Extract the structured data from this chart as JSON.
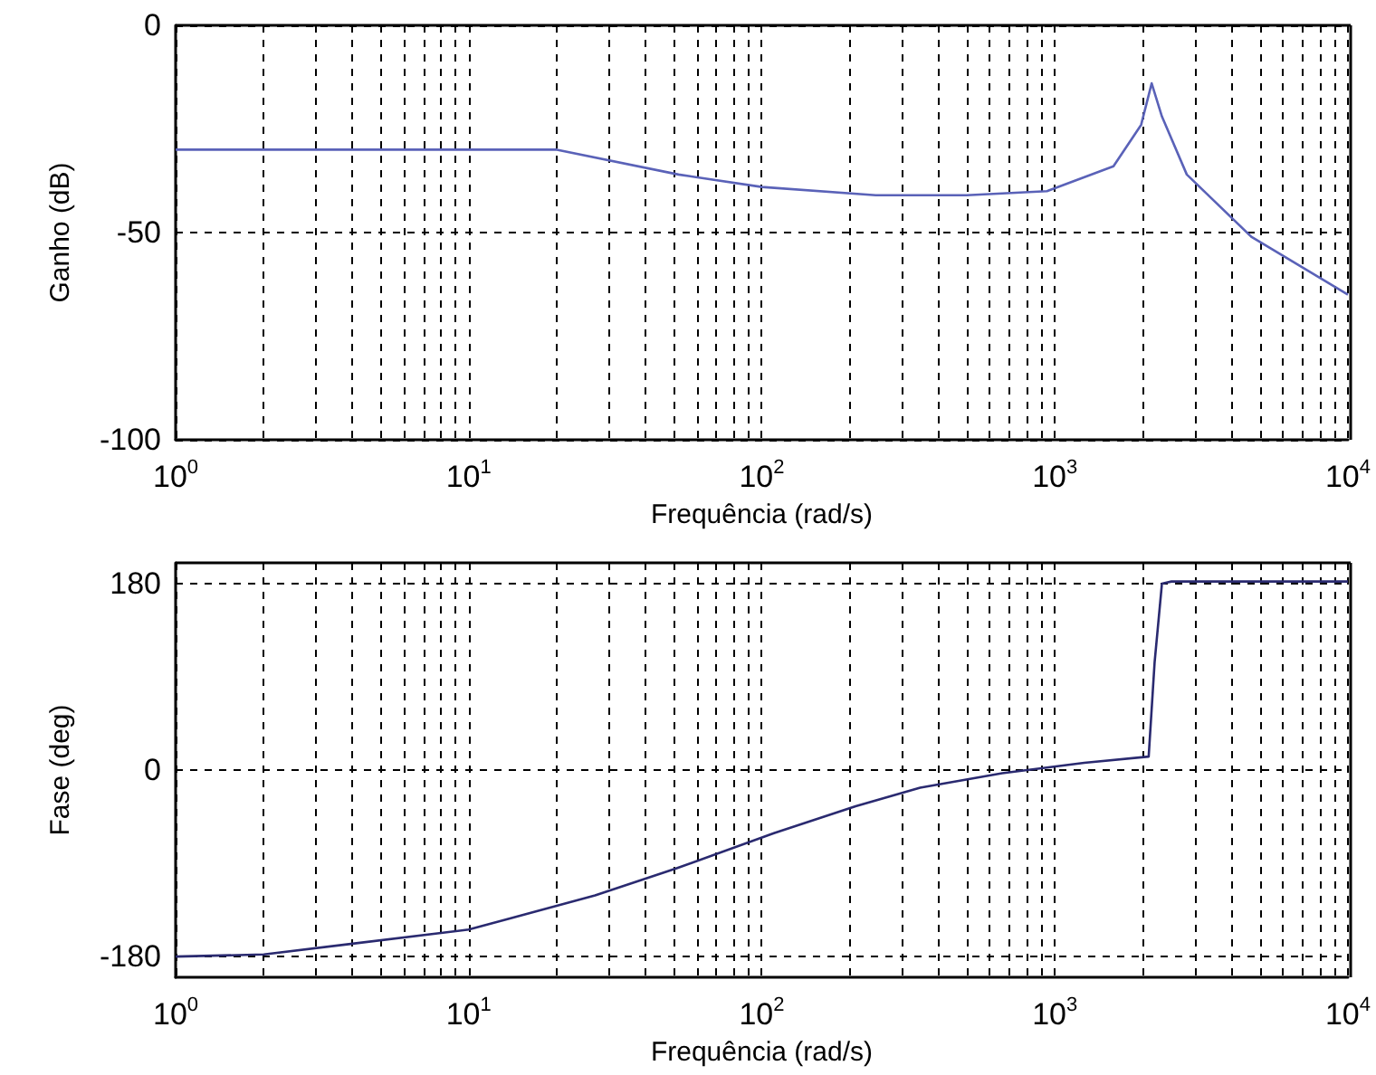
{
  "chart_data": [
    {
      "type": "line",
      "ylabel": "Ganho (dB)",
      "xlabel": "Frequência (rad/s)",
      "log": "x",
      "grid": true,
      "line_style": "solid",
      "marker": "none",
      "xlim": [
        1,
        10000
      ],
      "ylim": [
        -100,
        0
      ],
      "yticks": [
        -100,
        -50,
        0
      ],
      "xticks": [
        {
          "value": 1,
          "label": "10$^{0}$"
        },
        {
          "value": 2,
          "label": null
        },
        {
          "value": 3,
          "label": null
        },
        {
          "value": 4,
          "label": null
        },
        {
          "value": 5,
          "label": null
        },
        {
          "value": 6,
          "label": null
        },
        {
          "value": 7,
          "label": null
        },
        {
          "value": 8,
          "label": null
        },
        {
          "value": 9,
          "label": null
        },
        {
          "value": 10,
          "label": "10$^{1}$"
        },
        {
          "value": 20,
          "label": null
        },
        {
          "value": 30,
          "label": null
        },
        {
          "value": 40,
          "label": null
        },
        {
          "value": 50,
          "label": null
        },
        {
          "value": 60,
          "label": null
        },
        {
          "value": 70,
          "label": null
        },
        {
          "value": 80,
          "label": null
        },
        {
          "value": 90,
          "label": null
        },
        {
          "value": 100,
          "label": "10$^{2}$"
        },
        {
          "value": 200,
          "label": null
        },
        {
          "value": 300,
          "label": null
        },
        {
          "value": 400,
          "label": null
        },
        {
          "value": 500,
          "label": null
        },
        {
          "value": 600,
          "label": null
        },
        {
          "value": 700,
          "label": null
        },
        {
          "value": 800,
          "label": null
        },
        {
          "value": 900,
          "label": null
        },
        {
          "value": 1000,
          "label": "10$^{3}$"
        },
        {
          "value": 2000,
          "label": null
        },
        {
          "value": 3000,
          "label": null
        },
        {
          "value": 4000,
          "label": null
        },
        {
          "value": 5000,
          "label": null
        },
        {
          "value": 6000,
          "label": null
        },
        {
          "value": 7000,
          "label": null
        },
        {
          "value": 8000,
          "label": null
        },
        {
          "value": 9000,
          "label": null
        },
        {
          "value": 10000,
          "label": "10$^{4}$"
        }
      ],
      "series": [
        {
          "color": "#5a62b8",
          "x": [
            1,
            5,
            20,
            52,
            100,
            245,
            500,
            940,
            1585,
            1970,
            2140,
            2320,
            2820,
            4680,
            10000
          ],
          "values": [
            -30,
            -30,
            -30,
            -36,
            -39,
            -41,
            -41,
            -40,
            -34,
            -24,
            -14,
            -22,
            -36,
            -51,
            -65
          ]
        }
      ]
    },
    {
      "type": "line",
      "ylabel": "Fase (deg)",
      "xlabel": "Frequência (rad/s)",
      "log": "x",
      "grid": true,
      "line_style": "solid",
      "marker": "none",
      "xlim": [
        1,
        10000
      ],
      "ylim": [
        -200,
        200
      ],
      "yticks": [
        -180,
        0,
        180
      ],
      "xticks": [
        {
          "value": 1,
          "label": "10$^{0}$"
        },
        {
          "value": 2,
          "label": null
        },
        {
          "value": 3,
          "label": null
        },
        {
          "value": 4,
          "label": null
        },
        {
          "value": 5,
          "label": null
        },
        {
          "value": 6,
          "label": null
        },
        {
          "value": 7,
          "label": null
        },
        {
          "value": 8,
          "label": null
        },
        {
          "value": 9,
          "label": null
        },
        {
          "value": 10,
          "label": "10$^{1}$"
        },
        {
          "value": 20,
          "label": null
        },
        {
          "value": 30,
          "label": null
        },
        {
          "value": 40,
          "label": null
        },
        {
          "value": 50,
          "label": null
        },
        {
          "value": 60,
          "label": null
        },
        {
          "value": 70,
          "label": null
        },
        {
          "value": 80,
          "label": null
        },
        {
          "value": 90,
          "label": null
        },
        {
          "value": 100,
          "label": "10$^{2}$"
        },
        {
          "value": 200,
          "label": null
        },
        {
          "value": 300,
          "label": null
        },
        {
          "value": 400,
          "label": null
        },
        {
          "value": 500,
          "label": null
        },
        {
          "value": 600,
          "label": null
        },
        {
          "value": 700,
          "label": null
        },
        {
          "value": 800,
          "label": null
        },
        {
          "value": 900,
          "label": null
        },
        {
          "value": 1000,
          "label": "10$^{3}$"
        },
        {
          "value": 2000,
          "label": null
        },
        {
          "value": 3000,
          "label": null
        },
        {
          "value": 4000,
          "label": null
        },
        {
          "value": 5000,
          "label": null
        },
        {
          "value": 6000,
          "label": null
        },
        {
          "value": 7000,
          "label": null
        },
        {
          "value": 8000,
          "label": null
        },
        {
          "value": 9000,
          "label": null
        },
        {
          "value": 10000,
          "label": "10$^{4}$"
        }
      ],
      "series": [
        {
          "color": "#2a2a70",
          "x": [
            1,
            2,
            3.9,
            10,
            27,
            51,
            110,
            209,
            347,
            661,
            1260,
            2090,
            2190,
            2320,
            2500,
            10000
          ],
          "values": [
            -180,
            -178,
            -168,
            -154,
            -121,
            -95,
            -61,
            -35,
            -17,
            -3,
            7,
            13,
            104,
            180,
            182,
            182
          ]
        }
      ]
    }
  ]
}
